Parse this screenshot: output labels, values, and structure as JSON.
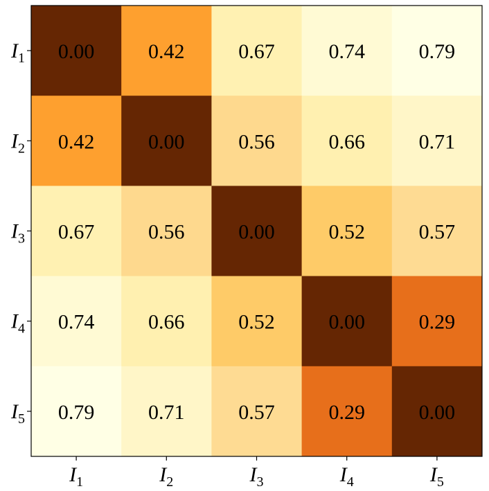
{
  "chart_data": {
    "type": "heatmap",
    "title": "",
    "xlabel": "",
    "ylabel": "",
    "x_tick_labels": [
      {
        "base": "I",
        "sub": "1"
      },
      {
        "base": "I",
        "sub": "2"
      },
      {
        "base": "I",
        "sub": "3"
      },
      {
        "base": "I",
        "sub": "4"
      },
      {
        "base": "I",
        "sub": "5"
      }
    ],
    "y_tick_labels": [
      {
        "base": "I",
        "sub": "1"
      },
      {
        "base": "I",
        "sub": "2"
      },
      {
        "base": "I",
        "sub": "3"
      },
      {
        "base": "I",
        "sub": "4"
      },
      {
        "base": "I",
        "sub": "5"
      }
    ],
    "values": [
      [
        0.0,
        0.42,
        0.67,
        0.74,
        0.79
      ],
      [
        0.42,
        0.0,
        0.56,
        0.66,
        0.71
      ],
      [
        0.67,
        0.56,
        0.0,
        0.52,
        0.57
      ],
      [
        0.74,
        0.66,
        0.52,
        0.0,
        0.29
      ],
      [
        0.79,
        0.71,
        0.57,
        0.29,
        0.0
      ]
    ],
    "value_format": "0.00",
    "colormap": "YlOrBr (reversed)",
    "color_range": [
      0.0,
      0.79
    ],
    "colorbar": false,
    "grid": false,
    "colors": {
      "cells": [
        [
          "#652603",
          "#fea02f",
          "#fff1b2",
          "#fffad4",
          "#ffffe5"
        ],
        [
          "#fea02f",
          "#652603",
          "#fed98e",
          "#fff0b0",
          "#fff6c8"
        ],
        [
          "#fff1b2",
          "#fed98e",
          "#652603",
          "#fecb68",
          "#fedb93"
        ],
        [
          "#fffad4",
          "#fff0b0",
          "#fecb68",
          "#652603",
          "#e76f1b"
        ],
        [
          "#ffffe5",
          "#fff6c8",
          "#fedb93",
          "#e76f1b",
          "#652603"
        ]
      ],
      "text": "#000000",
      "axes": "#000000"
    }
  }
}
